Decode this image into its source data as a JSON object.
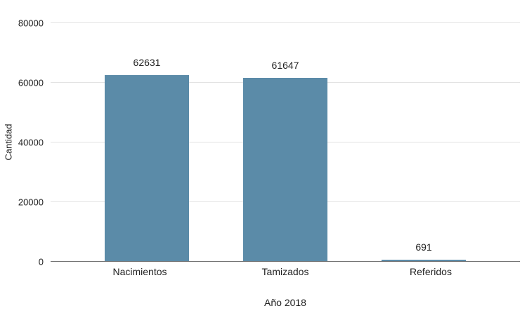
{
  "chart_data": {
    "type": "bar",
    "title": "",
    "categories": [
      "Nacimientos",
      "Tamizados",
      "Referidos"
    ],
    "values": [
      62631,
      61647,
      691
    ],
    "data_labels": [
      "62631",
      "61647",
      "691"
    ],
    "xlabel": "Año 2018",
    "ylabel": "Cantidad",
    "ylim": [
      0,
      80000
    ],
    "yticks": [
      0,
      20000,
      40000,
      60000,
      80000
    ],
    "grid": true,
    "legend": "none",
    "bar_color": "#5b8ba8",
    "gridline_color": "#e3e3e3",
    "baseline_color": "#757575",
    "background": "#ffffff"
  }
}
